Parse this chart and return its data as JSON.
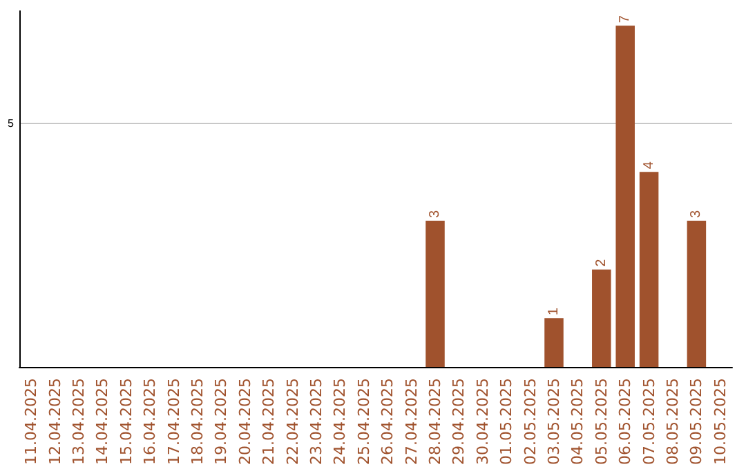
{
  "chart_data": {
    "type": "bar",
    "categories": [
      "11.04.2025",
      "12.04.2025",
      "13.04.2025",
      "14.04.2025",
      "15.04.2025",
      "16.04.2025",
      "17.04.2025",
      "18.04.2025",
      "19.04.2025",
      "20.04.2025",
      "21.04.2025",
      "22.04.2025",
      "23.04.2025",
      "24.04.2025",
      "25.04.2025",
      "26.04.2025",
      "27.04.2025",
      "28.04.2025",
      "29.04.2025",
      "30.04.2025",
      "01.05.2025",
      "02.05.2025",
      "03.05.2025",
      "04.05.2025",
      "05.05.2025",
      "06.05.2025",
      "07.05.2025",
      "08.05.2025",
      "09.05.2025",
      "10.05.2025"
    ],
    "values": [
      null,
      null,
      null,
      null,
      null,
      null,
      null,
      null,
      null,
      null,
      null,
      null,
      null,
      null,
      null,
      null,
      null,
      3,
      null,
      null,
      null,
      null,
      1,
      null,
      2,
      7,
      4,
      null,
      3,
      null
    ],
    "data_labels": true,
    "color": "#a0522d",
    "ylim": [
      0,
      7.3
    ],
    "yticks": [
      {
        "value": 0,
        "label": null
      },
      5
    ],
    "grid": "y"
  }
}
